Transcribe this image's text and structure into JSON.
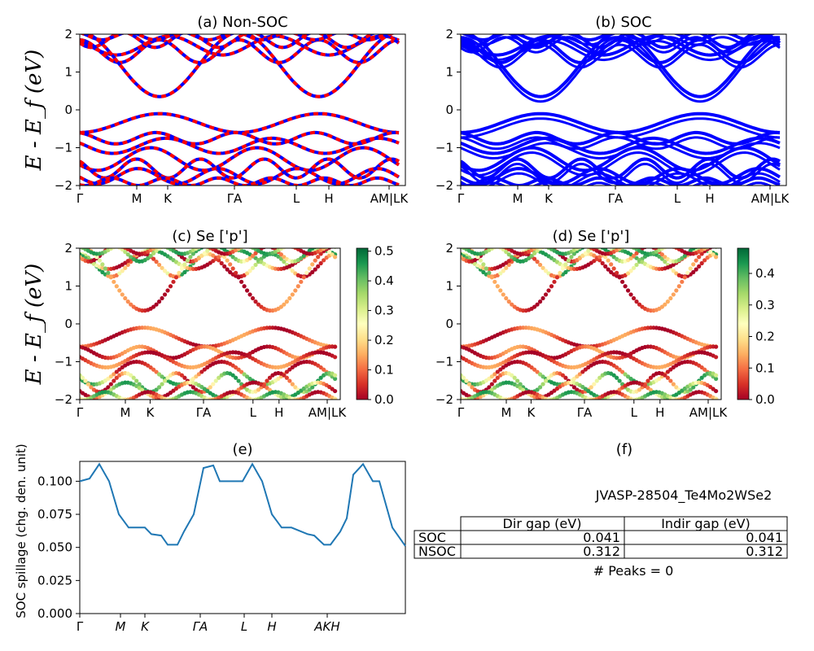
{
  "chart_data": [
    {
      "panel": "a",
      "type": "line",
      "title": "(a) Non-SOC",
      "ylabel": "E - E_f (eV)",
      "ylim": [
        -2,
        2
      ],
      "yticks": [
        "2",
        "1",
        "0",
        "−1",
        "−2"
      ],
      "kpoint_labels": [
        "Γ",
        "M",
        "K",
        "ΓA",
        "L",
        "H",
        "AM|LK"
      ],
      "colors": {
        "up": "#0000ff",
        "down": "#ff0000"
      }
    },
    {
      "panel": "b",
      "type": "line",
      "title": "(b) SOC",
      "ylim": [
        -2,
        2
      ],
      "yticks": [
        "2",
        "1",
        "0",
        "−1",
        "−2"
      ],
      "kpoint_labels": [
        "Γ",
        "M",
        "K",
        "ΓA",
        "L",
        "H",
        "AM|LK"
      ],
      "colors": {
        "bands": "#0000ff"
      }
    },
    {
      "panel": "c",
      "type": "scatter",
      "title": "(c)  Se ['p']",
      "ylabel": "E - E_f (eV)",
      "ylim": [
        -2,
        2
      ],
      "yticks": [
        "2",
        "1",
        "0",
        "−1",
        "−2"
      ],
      "kpoint_labels": [
        "Γ",
        "M",
        "K",
        "ΓA",
        "L",
        "H",
        "AM|LK"
      ],
      "colorbar": {
        "ticks": [
          "0.5",
          "0.4",
          "0.3",
          "0.2",
          "0.1",
          "0.0"
        ],
        "range": [
          0,
          0.51
        ],
        "colormap": "RdYlGn"
      }
    },
    {
      "panel": "d",
      "type": "scatter",
      "title": "(d) Se ['p']",
      "ylim": [
        -2,
        2
      ],
      "yticks": [
        "2",
        "1",
        "0",
        "−1",
        "−2"
      ],
      "kpoint_labels": [
        "Γ",
        "M",
        "K",
        "ΓA",
        "L",
        "H",
        "AM|LK"
      ],
      "colorbar": {
        "ticks": [
          "0.4",
          "0.3",
          "0.2",
          "0.1",
          "0.0"
        ],
        "range": [
          0,
          0.48
        ],
        "colormap": "RdYlGn"
      }
    },
    {
      "panel": "e",
      "type": "line",
      "title": "(e)",
      "ylabel": "SOC spillage (chg. den. unit)",
      "ylim": [
        0,
        0.115
      ],
      "yticks": [
        "0.100",
        "0.075",
        "0.050",
        "0.025",
        "0.000"
      ],
      "kpoint_labels": [
        "Γ",
        "M",
        "K",
        "ΓA",
        "L",
        "H",
        "AKH"
      ],
      "series_color": "#1f77b4",
      "x": [
        0,
        0.03,
        0.06,
        0.09,
        0.12,
        0.15,
        0.2,
        0.22,
        0.25,
        0.27,
        0.3,
        0.32,
        0.35,
        0.38,
        0.41,
        0.43,
        0.46,
        0.5,
        0.53,
        0.56,
        0.59,
        0.62,
        0.65,
        0.7,
        0.72,
        0.75,
        0.77,
        0.8,
        0.82,
        0.84,
        0.87,
        0.9,
        0.92,
        0.96,
        1.0
      ],
      "y": [
        0.1,
        0.102,
        0.113,
        0.1,
        0.075,
        0.065,
        0.065,
        0.06,
        0.059,
        0.052,
        0.052,
        0.062,
        0.075,
        0.11,
        0.112,
        0.1,
        0.1,
        0.1,
        0.113,
        0.1,
        0.075,
        0.065,
        0.065,
        0.06,
        0.059,
        0.052,
        0.052,
        0.062,
        0.072,
        0.105,
        0.113,
        0.1,
        0.1,
        0.065,
        0.051
      ]
    },
    {
      "panel": "f",
      "type": "table",
      "title": "(f)",
      "material": "JVASP-28504_Te4Mo2WSe2",
      "columns": [
        "Dir gap (eV)",
        "Indir gap (eV)"
      ],
      "rows": [
        {
          "label": "SOC",
          "values": [
            "0.041",
            "0.041"
          ]
        },
        {
          "label": "NSOC",
          "values": [
            "0.312",
            "0.312"
          ]
        }
      ],
      "note": "# Peaks = 0"
    }
  ]
}
